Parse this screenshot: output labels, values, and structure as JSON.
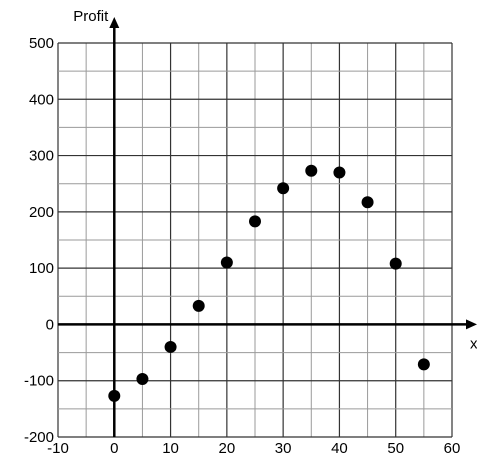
{
  "chart_data": {
    "type": "scatter",
    "ylabel": "Profit",
    "xlabel": "x",
    "xlim": [
      -10,
      60
    ],
    "ylim": [
      -200,
      500
    ],
    "grid": true,
    "x_major_ticks": [
      -10,
      0,
      10,
      20,
      30,
      40,
      50,
      60
    ],
    "x_minor_step": 5,
    "y_major_ticks": [
      -200,
      -100,
      0,
      100,
      200,
      300,
      400,
      500
    ],
    "y_minor_step": 50,
    "x_tick_labels": [
      "-10",
      "0",
      "10",
      "20",
      "30",
      "40",
      "50",
      "60"
    ],
    "y_tick_labels": [
      "-200",
      "-100",
      "0",
      "100",
      "200",
      "300",
      "400",
      "500"
    ],
    "points": [
      {
        "x": 0,
        "y": -127
      },
      {
        "x": 5,
        "y": -97
      },
      {
        "x": 10,
        "y": -40
      },
      {
        "x": 15,
        "y": 33
      },
      {
        "x": 20,
        "y": 110
      },
      {
        "x": 25,
        "y": 183
      },
      {
        "x": 30,
        "y": 242
      },
      {
        "x": 35,
        "y": 273
      },
      {
        "x": 40,
        "y": 270
      },
      {
        "x": 45,
        "y": 217
      },
      {
        "x": 50,
        "y": 108
      },
      {
        "x": 55,
        "y": -71
      }
    ]
  }
}
